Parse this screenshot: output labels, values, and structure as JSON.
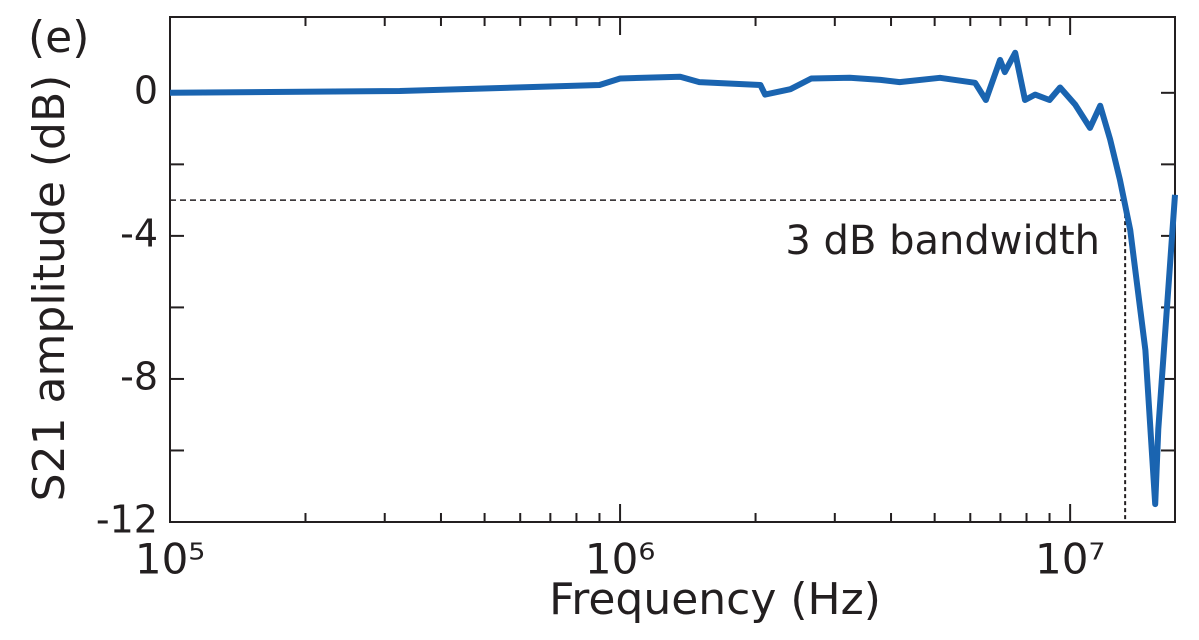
{
  "chart_data": {
    "type": "line",
    "panel_label": "(e)",
    "x_label": "Frequency (Hz)",
    "y_label": "S21 amplitude (dB)",
    "annotation": "3 dB bandwidth",
    "threshold": -3,
    "bandwidth_hz": 13250000,
    "xscale": "log",
    "xlim": [
      100000,
      17100000
    ],
    "ylim": [
      -12,
      2.12
    ],
    "xticks": [
      {
        "value": 100000,
        "label": "10⁵"
      },
      {
        "value": 1000000,
        "label": "10⁶"
      },
      {
        "value": 10000000,
        "label": "10⁷"
      }
    ],
    "xminorticks": [
      200000,
      300000,
      400000,
      500000,
      600000,
      700000,
      800000,
      900000,
      2000000,
      3000000,
      4000000,
      5000000,
      6000000,
      7000000,
      8000000,
      9000000
    ],
    "yticks": [
      0,
      -4,
      -8,
      -12
    ],
    "yminorticks": [
      -2,
      -6,
      -10
    ],
    "x": [
      100000,
      324000,
      900000,
      1000000,
      1360000,
      1500000,
      2050000,
      2100000,
      2390000,
      2660000,
      3240000,
      3790000,
      4180000,
      5140000,
      6150000,
      6500000,
      6990000,
      7160000,
      7550000,
      7940000,
      8360000,
      9000000,
      9500000,
      10260000,
      11070000,
      11660000,
      12270000,
      12900000,
      13600000,
      14700000,
      15450000,
      15700000,
      17100000
    ],
    "series": [
      {
        "name": "S21",
        "color": "#1a64b0",
        "values": [
          0.0,
          0.05,
          0.22,
          0.4,
          0.45,
          0.3,
          0.22,
          -0.05,
          0.1,
          0.4,
          0.42,
          0.36,
          0.3,
          0.42,
          0.28,
          -0.2,
          0.92,
          0.58,
          1.12,
          -0.2,
          -0.05,
          -0.2,
          0.15,
          -0.33,
          -0.98,
          -0.36,
          -1.3,
          -2.43,
          -3.83,
          -7.2,
          -11.5,
          -9.4,
          -2.85
        ]
      }
    ]
  }
}
